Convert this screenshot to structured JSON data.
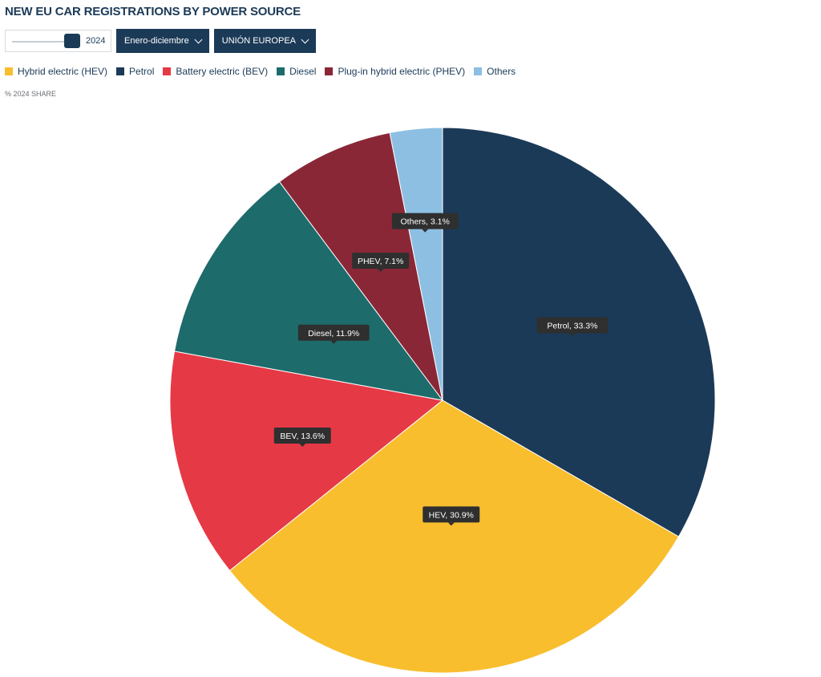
{
  "header": {
    "title": "NEW EU CAR REGISTRATIONS BY POWER SOURCE"
  },
  "controls": {
    "year_value": "2024",
    "period_label": "Enero-diciembre",
    "region_label": "UNIÓN EUROPEA"
  },
  "subtitle": "% 2024 SHARE",
  "colors": {
    "hev": "#f8be2e",
    "petrol": "#1b3a57",
    "bev": "#e63946",
    "diesel": "#1e6b6b",
    "phev": "#8a2736",
    "others": "#8dbfe3"
  },
  "legend": [
    {
      "label": "Hybrid electric (HEV)",
      "color": "#f8be2e"
    },
    {
      "label": "Petrol",
      "color": "#1b3a57"
    },
    {
      "label": "Battery electric (BEV)",
      "color": "#e63946"
    },
    {
      "label": "Diesel",
      "color": "#1e6b6b"
    },
    {
      "label": "Plug-in hybrid electric (PHEV)",
      "color": "#8a2736"
    },
    {
      "label": "Others",
      "color": "#8dbfe3"
    }
  ],
  "chart_data": {
    "type": "pie",
    "title": "NEW EU CAR REGISTRATIONS BY POWER SOURCE",
    "subtitle": "% 2024 SHARE",
    "unit": "%",
    "slices": [
      {
        "name": "Petrol",
        "value": 33.3,
        "label": "Petrol, 33.3%",
        "color": "#1b3a57"
      },
      {
        "name": "HEV",
        "value": 30.9,
        "label": "HEV, 30.9%",
        "color": "#f8be2e"
      },
      {
        "name": "BEV",
        "value": 13.6,
        "label": "BEV, 13.6%",
        "color": "#e63946"
      },
      {
        "name": "Diesel",
        "value": 11.9,
        "label": "Diesel, 11.9%",
        "color": "#1e6b6b"
      },
      {
        "name": "PHEV",
        "value": 7.1,
        "label": "PHEV, 7.1%",
        "color": "#8a2736"
      },
      {
        "name": "Others",
        "value": 3.1,
        "label": "Others, 3.1%",
        "color": "#8dbfe3"
      }
    ],
    "legend_position": "top-left"
  }
}
